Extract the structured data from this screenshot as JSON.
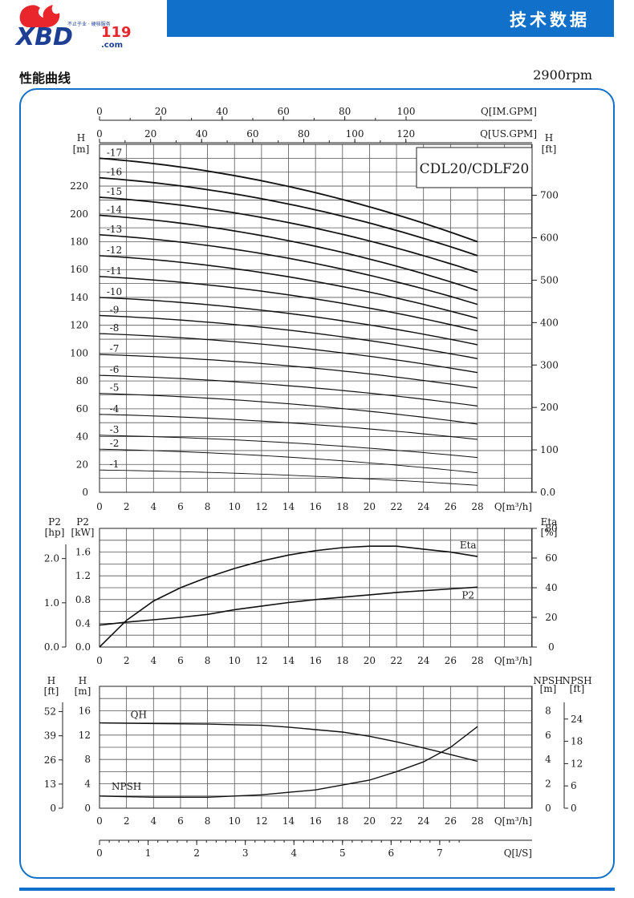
{
  "header": {
    "logo_text": "XBD",
    "logo_number": "119",
    "logo_domain": ".com",
    "logo_tagline": "不止于业 · 硬核服务",
    "title": "技术数据"
  },
  "section": {
    "title": "性能曲线",
    "speed": "2900rpm"
  },
  "colors": {
    "brand_blue": "#1170c9",
    "logo_red": "#e8262b",
    "logo_blue": "#1c3f94"
  },
  "chart_data": [
    {
      "type": "line",
      "title": "CDL20/CDLF20",
      "xlabel": "Q[m³/h]",
      "x_ticks": [
        0,
        2,
        4,
        6,
        8,
        10,
        12,
        14,
        16,
        18,
        20,
        22,
        24,
        26,
        28
      ],
      "secondary_x_axes": [
        {
          "label": "Q[IM.GPM]",
          "ticks": [
            0,
            20,
            40,
            60,
            80,
            100
          ]
        },
        {
          "label": "Q[US.GPM]",
          "ticks": [
            0,
            20,
            40,
            60,
            80,
            100,
            120
          ]
        }
      ],
      "ylabel": "H [m]",
      "ylim": [
        0,
        250
      ],
      "y_ticks": [
        0,
        20,
        40,
        60,
        80,
        100,
        120,
        140,
        160,
        180,
        200,
        220
      ],
      "right_axis": {
        "label": "H [ft]",
        "ticks": [
          "0.0",
          "100",
          "200",
          "300",
          "400",
          "500",
          "600",
          "700"
        ]
      },
      "stage_labels": [
        "-1",
        "-2",
        "-3",
        "-4",
        "-5",
        "-6",
        "-7",
        "-8",
        "-9",
        "-10",
        "-11",
        "-12",
        "-13",
        "-14",
        "-15",
        "-16",
        "-17"
      ],
      "stage_head_at_zero": [
        16,
        31,
        41,
        56,
        71,
        84,
        99,
        114,
        127,
        140,
        155,
        170,
        185,
        199,
        212,
        226,
        240
      ],
      "stage_head_at_28": [
        5,
        14,
        25,
        38,
        49,
        62,
        75,
        86,
        96,
        106,
        116,
        125,
        135,
        145,
        158,
        170,
        180
      ]
    },
    {
      "type": "line",
      "xlabel": "Q[m³/h]",
      "x_ticks": [
        0,
        2,
        4,
        6,
        8,
        10,
        12,
        14,
        16,
        18,
        20,
        22,
        24,
        26,
        28
      ],
      "left_axis_1": {
        "label": "P2 [hp]",
        "ticks": [
          "0.0",
          "1.0",
          "2.0"
        ]
      },
      "left_axis_2": {
        "label": "P2 [kW]",
        "ticks": [
          "0.0",
          "0.4",
          "0.8",
          "1.2",
          "1.6"
        ]
      },
      "right_axis": {
        "label": "Eta [%]",
        "ticks": [
          "0",
          "20",
          "40",
          "60",
          "80"
        ]
      },
      "series": [
        {
          "name": "Eta",
          "axis": "right",
          "x": [
            0,
            2,
            4,
            6,
            8,
            10,
            12,
            14,
            16,
            18,
            20,
            22,
            24,
            26,
            28
          ],
          "values": [
            0,
            18,
            31,
            40,
            47,
            53,
            58,
            62,
            65,
            67,
            68,
            68,
            66,
            64,
            61
          ]
        },
        {
          "name": "P2",
          "axis": "left_kW",
          "x": [
            0,
            2,
            4,
            6,
            8,
            10,
            12,
            14,
            16,
            18,
            20,
            22,
            24,
            26,
            28
          ],
          "values": [
            0.37,
            0.42,
            0.46,
            0.5,
            0.55,
            0.63,
            0.69,
            0.75,
            0.8,
            0.84,
            0.88,
            0.92,
            0.95,
            0.98,
            1.01
          ]
        }
      ]
    },
    {
      "type": "line",
      "xlabel": "Q[m³/h]",
      "x_ticks": [
        0,
        2,
        4,
        6,
        8,
        10,
        12,
        14,
        16,
        18,
        20,
        22,
        24,
        26,
        28
      ],
      "secondary_x_axis": {
        "label": "Q[l/S]",
        "ticks": [
          "0",
          "1",
          "2",
          "3",
          "4",
          "5",
          "6",
          "7"
        ]
      },
      "left_axis_1": {
        "label": "H [ft]",
        "ticks": [
          "0",
          "13",
          "26",
          "39",
          "52"
        ]
      },
      "left_axis_2": {
        "label": "H [m]",
        "ticks": [
          "0",
          "4",
          "8",
          "12",
          "16"
        ]
      },
      "right_axis_1": {
        "label": "NPSH [m]",
        "ticks": [
          "0",
          "2",
          "4",
          "6",
          "8"
        ]
      },
      "right_axis_2": {
        "label": "NPSH [ft]",
        "ticks": [
          "0",
          "6",
          "12",
          "18",
          "24"
        ]
      },
      "series": [
        {
          "name": "QH",
          "axis": "left_m",
          "x": [
            0,
            4,
            8,
            10,
            12,
            14,
            16,
            18,
            20,
            22,
            24,
            26,
            28
          ],
          "values": [
            14.0,
            13.9,
            13.8,
            13.7,
            13.6,
            13.3,
            12.9,
            12.5,
            11.8,
            10.9,
            9.9,
            8.8,
            7.7
          ]
        },
        {
          "name": "NPSH",
          "axis": "right_m",
          "x": [
            0,
            4,
            8,
            10,
            12,
            14,
            16,
            18,
            20,
            22,
            24,
            26,
            28
          ],
          "values": [
            1.0,
            0.9,
            0.9,
            1.0,
            1.1,
            1.3,
            1.5,
            1.9,
            2.3,
            3.0,
            3.8,
            5.0,
            6.7
          ]
        }
      ]
    }
  ]
}
